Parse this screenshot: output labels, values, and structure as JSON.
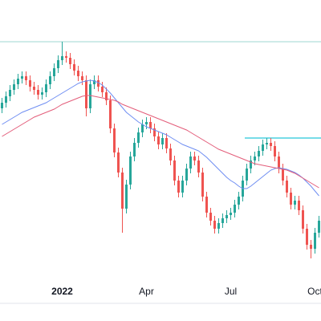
{
  "chart_data": {
    "type": "candlestick",
    "categories": [
      null,
      null,
      null,
      null,
      null,
      null,
      null,
      null,
      null,
      null,
      null,
      null,
      null,
      null,
      null,
      "2022",
      null,
      null,
      null,
      null,
      null,
      null,
      null,
      null,
      null,
      null,
      null,
      null,
      null,
      null,
      null,
      null,
      null,
      null,
      null,
      null,
      "Apr",
      null,
      null,
      null,
      null,
      null,
      null,
      null,
      null,
      null,
      null,
      null,
      null,
      null,
      null,
      null,
      null,
      null,
      null,
      null,
      null,
      "Jul",
      null,
      null,
      null,
      null,
      null,
      null,
      null,
      null,
      null,
      null,
      null,
      null,
      null,
      null,
      null,
      null,
      null,
      null,
      null,
      null,
      "Oct",
      null
    ],
    "open": [
      265,
      272,
      280,
      288,
      295,
      302,
      305,
      300,
      292,
      288,
      282,
      285,
      295,
      305,
      315,
      325,
      330,
      328,
      320,
      312,
      305,
      300,
      265,
      295,
      300,
      292,
      285,
      275,
      240,
      210,
      185,
      140,
      170,
      205,
      222,
      235,
      245,
      248,
      240,
      230,
      220,
      228,
      215,
      200,
      175,
      160,
      175,
      190,
      205,
      200,
      185,
      155,
      135,
      125,
      115,
      122,
      128,
      132,
      135,
      145,
      155,
      175,
      190,
      200,
      205,
      212,
      220,
      222,
      218,
      205,
      190,
      175,
      160,
      145,
      150,
      138,
      115,
      95,
      90,
      110
    ],
    "high": [
      278,
      286,
      294,
      301,
      308,
      311,
      311,
      306,
      298,
      294,
      291,
      301,
      311,
      321,
      331,
      348,
      336,
      334,
      326,
      318,
      311,
      306,
      301,
      306,
      306,
      298,
      291,
      281,
      246,
      216,
      191,
      176,
      211,
      228,
      241,
      251,
      254,
      254,
      246,
      236,
      234,
      234,
      221,
      206,
      181,
      181,
      196,
      211,
      211,
      206,
      191,
      161,
      141,
      131,
      128,
      134,
      138,
      141,
      151,
      161,
      181,
      196,
      206,
      211,
      218,
      226,
      228,
      228,
      224,
      211,
      196,
      181,
      166,
      156,
      156,
      144,
      121,
      101,
      116,
      131
    ],
    "low": [
      259,
      266,
      274,
      282,
      289,
      296,
      294,
      286,
      282,
      276,
      276,
      279,
      289,
      299,
      309,
      319,
      322,
      314,
      306,
      299,
      294,
      255,
      259,
      289,
      286,
      279,
      269,
      234,
      204,
      179,
      110,
      134,
      164,
      199,
      216,
      229,
      239,
      234,
      224,
      214,
      214,
      209,
      194,
      169,
      154,
      154,
      169,
      184,
      194,
      179,
      149,
      129,
      119,
      109,
      109,
      116,
      122,
      126,
      129,
      139,
      149,
      169,
      184,
      194,
      199,
      206,
      214,
      212,
      199,
      184,
      169,
      154,
      139,
      139,
      132,
      109,
      89,
      78,
      84,
      104
    ],
    "close": [
      272,
      280,
      288,
      295,
      302,
      305,
      300,
      292,
      288,
      282,
      285,
      295,
      305,
      315,
      325,
      330,
      328,
      320,
      312,
      305,
      300,
      265,
      295,
      300,
      292,
      285,
      275,
      240,
      210,
      185,
      140,
      170,
      205,
      222,
      235,
      245,
      248,
      240,
      230,
      220,
      228,
      215,
      200,
      175,
      160,
      175,
      190,
      205,
      200,
      185,
      155,
      135,
      125,
      115,
      122,
      128,
      132,
      135,
      145,
      155,
      175,
      190,
      200,
      205,
      212,
      220,
      222,
      218,
      205,
      190,
      175,
      160,
      145,
      150,
      138,
      115,
      95,
      90,
      110,
      125
    ],
    "up_color": "#26a69a",
    "down_color": "#ef5350",
    "series": [
      {
        "color": "#6f8ef2",
        "values": [
          245,
          248,
          251,
          254,
          257,
          260,
          262,
          264,
          266,
          268,
          270,
          272,
          275,
          278,
          281,
          284,
          287,
          290,
          293,
          296,
          298,
          299,
          300,
          299,
          297,
          294,
          289,
          284,
          278,
          272,
          266,
          260,
          256,
          252,
          248,
          245,
          242,
          240,
          238,
          236,
          234,
          232,
          229,
          226,
          223,
          220,
          218,
          216,
          214,
          212,
          208,
          204,
          199,
          194,
          189,
          184,
          179,
          175,
          172,
          168,
          165,
          165,
          168,
          172,
          176,
          180,
          184,
          188,
          190,
          191,
          190,
          189,
          187,
          185,
          182,
          178,
          173,
          168,
          162,
          156
        ]
      },
      {
        "color": "#e35d7a",
        "values": [
          230,
          233,
          236,
          239,
          242,
          245,
          248,
          251,
          254,
          256,
          258,
          260,
          262,
          264,
          267,
          270,
          272,
          274,
          276,
          278,
          280,
          281,
          281,
          280,
          279,
          278,
          277,
          276,
          275,
          273,
          270,
          268,
          266,
          264,
          262,
          260,
          258,
          256,
          254,
          252,
          250,
          248,
          246,
          244,
          242,
          240,
          238,
          235,
          232,
          229,
          226,
          223,
          220,
          217,
          214,
          212,
          210,
          208,
          206,
          204,
          202,
          200,
          198,
          196,
          195,
          194,
          193,
          192,
          191,
          190,
          189,
          188,
          186,
          184,
          181,
          178,
          175,
          172,
          169,
          166
        ]
      }
    ],
    "reference_lines": [
      {
        "value": 348,
        "color": "#b2dfdb",
        "from": 0
      },
      {
        "value": 228,
        "color": "#26c6da",
        "from": 61
      }
    ],
    "ylim": [
      50,
      400
    ]
  }
}
